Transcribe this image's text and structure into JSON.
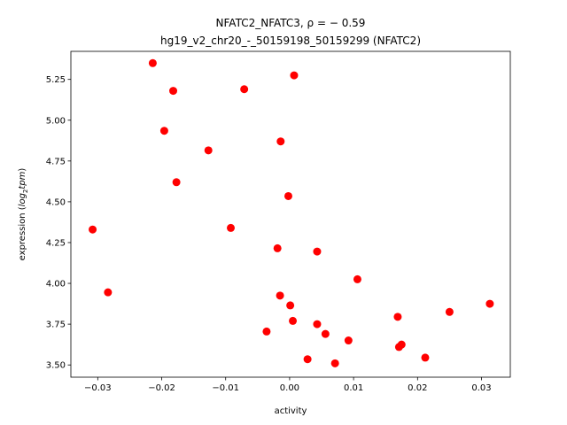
{
  "chart_data": {
    "type": "scatter",
    "title": "NFATC2_NFATC3, ρ = − 0.59",
    "subtitle": "hg19_v2_chr20_-_50159198_50159299 (NFATC2)",
    "xlabel": "activity",
    "ylabel_prefix": "expression (",
    "ylabel_math": "log",
    "ylabel_sub": "2",
    "ylabel_math2": "tpm",
    "ylabel_suffix": ")",
    "xlim": [
      -0.0342,
      0.0345
    ],
    "ylim": [
      3.425,
      5.422
    ],
    "xticks": [
      -0.03,
      -0.02,
      -0.01,
      0.0,
      0.01,
      0.02,
      0.03
    ],
    "xtick_labels": [
      "−0.03",
      "−0.02",
      "−0.01",
      "0.00",
      "0.01",
      "0.02",
      "0.03"
    ],
    "yticks": [
      3.5,
      3.75,
      4.0,
      4.25,
      4.5,
      4.75,
      5.0,
      5.25
    ],
    "ytick_labels": [
      "3.50",
      "3.75",
      "4.00",
      "4.25",
      "4.50",
      "4.75",
      "5.00",
      "5.25"
    ],
    "grid": false,
    "marker_color": "#ff0000",
    "points": [
      {
        "x": -0.0214,
        "y": 5.35
      },
      {
        "x": -0.0182,
        "y": 5.18
      },
      {
        "x": -0.0071,
        "y": 5.19
      },
      {
        "x": 0.0007,
        "y": 5.275
      },
      {
        "x": -0.0196,
        "y": 4.935
      },
      {
        "x": -0.0127,
        "y": 4.815
      },
      {
        "x": -0.0014,
        "y": 4.87
      },
      {
        "x": -0.0177,
        "y": 4.62
      },
      {
        "x": -0.0002,
        "y": 4.535
      },
      {
        "x": -0.0308,
        "y": 4.33
      },
      {
        "x": -0.0092,
        "y": 4.34
      },
      {
        "x": -0.0019,
        "y": 4.215
      },
      {
        "x": 0.0043,
        "y": 4.195
      },
      {
        "x": 0.0106,
        "y": 4.025
      },
      {
        "x": -0.0284,
        "y": 3.945
      },
      {
        "x": -0.0015,
        "y": 3.925
      },
      {
        "x": 0.0001,
        "y": 3.865
      },
      {
        "x": 0.0005,
        "y": 3.77
      },
      {
        "x": -0.0036,
        "y": 3.705
      },
      {
        "x": 0.0043,
        "y": 3.75
      },
      {
        "x": 0.0056,
        "y": 3.69
      },
      {
        "x": 0.0028,
        "y": 3.535
      },
      {
        "x": 0.0071,
        "y": 3.51
      },
      {
        "x": 0.0092,
        "y": 3.65
      },
      {
        "x": 0.0169,
        "y": 3.795
      },
      {
        "x": 0.0171,
        "y": 3.61
      },
      {
        "x": 0.0175,
        "y": 3.625
      },
      {
        "x": 0.0212,
        "y": 3.545
      },
      {
        "x": 0.025,
        "y": 3.825
      },
      {
        "x": 0.0313,
        "y": 3.875
      }
    ]
  }
}
